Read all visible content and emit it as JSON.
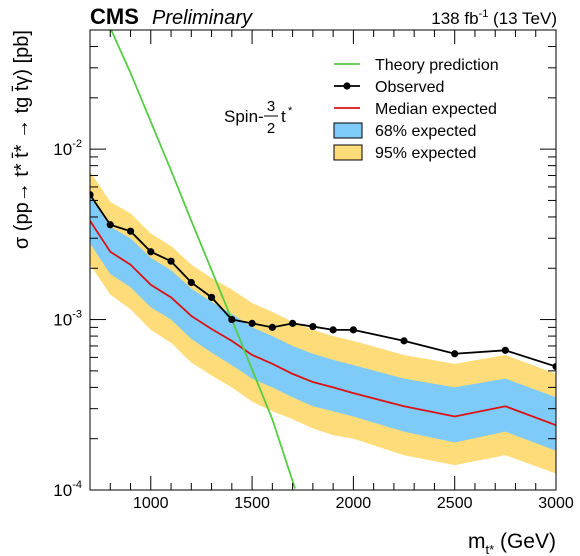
{
  "chart_data": {
    "type": "line",
    "experiment": "CMS",
    "status": "Preliminary",
    "lumi_value": "138 fb",
    "lumi_exponent": "-1",
    "energy": "(13 TeV)",
    "annotation": {
      "prefix": "Spin-",
      "num": "3",
      "den": "2",
      "particle": "t",
      "star": "*"
    },
    "xlabel": {
      "main": "m",
      "sub": "t*",
      "unit": "(GeV)"
    },
    "ylabel": "σ (pp→ t* t̄* → tg t̄γ) [pb]",
    "xlim": [
      700,
      3000
    ],
    "ylim": [
      0.0001,
      0.05
    ],
    "yscale": "log",
    "xticks": [
      1000,
      1500,
      2000,
      2500,
      3000
    ],
    "xtick_labels": [
      "1000",
      "1500",
      "2000",
      "2500",
      "3000"
    ],
    "yticks": [
      {
        "mant": "10",
        "exp": "-4",
        "v": 0.0001
      },
      {
        "mant": "10",
        "exp": "-3",
        "v": 0.001
      },
      {
        "mant": "10",
        "exp": "-2",
        "v": 0.01
      }
    ],
    "grid": false,
    "legend_position": "top-right",
    "x": [
      700,
      800,
      900,
      1000,
      1100,
      1200,
      1300,
      1400,
      1500,
      1600,
      1700,
      1800,
      1900,
      2000,
      2250,
      2500,
      2750,
      3000
    ],
    "series": [
      {
        "name": "Theory prediction",
        "color": "#55cc44",
        "x": [
          805,
          900,
          1000,
          1100,
          1200,
          1300,
          1400,
          1500,
          1600,
          1712
        ],
        "values": [
          0.05,
          0.028,
          0.0145,
          0.0075,
          0.0038,
          0.00195,
          0.001,
          0.00051,
          0.00026,
          0.000102
        ]
      },
      {
        "name": "Observed",
        "color": "#000000",
        "values": [
          0.0054,
          0.0036,
          0.0033,
          0.0025,
          0.0022,
          0.00165,
          0.00135,
          0.001,
          0.00095,
          0.0009,
          0.00095,
          0.00091,
          0.00087,
          0.00087,
          0.00075,
          0.00063,
          0.00066,
          0.00053
        ]
      },
      {
        "name": "Median expected",
        "color": "#dd1111",
        "values": [
          0.0038,
          0.0025,
          0.0021,
          0.0016,
          0.00135,
          0.00105,
          0.00088,
          0.00075,
          0.00062,
          0.00055,
          0.00048,
          0.00043,
          0.0004,
          0.00037,
          0.00031,
          0.00027,
          0.00031,
          0.00024
        ]
      },
      {
        "name": "68% expected",
        "color": "#7ecaf9",
        "lower": [
          0.0028,
          0.00185,
          0.00155,
          0.00118,
          0.001,
          0.00077,
          0.00064,
          0.00054,
          0.00045,
          0.0004,
          0.00035,
          0.00031,
          0.00029,
          0.00027,
          0.00022,
          0.00019,
          0.00022,
          0.00017
        ],
        "upper": [
          0.0053,
          0.0035,
          0.003,
          0.0023,
          0.00195,
          0.00152,
          0.00127,
          0.00108,
          0.0009,
          0.0008,
          0.0007,
          0.00063,
          0.00058,
          0.00054,
          0.00045,
          0.0004,
          0.00045,
          0.00035
        ]
      },
      {
        "name": "95% expected",
        "color": "#fedc79",
        "lower": [
          0.0021,
          0.0014,
          0.00115,
          0.00087,
          0.00073,
          0.00056,
          0.00047,
          0.0004,
          0.00033,
          0.00029,
          0.00026,
          0.00023,
          0.00021,
          0.0002,
          0.00016,
          0.00014,
          0.00016,
          0.000125
        ],
        "upper": [
          0.0074,
          0.0049,
          0.0042,
          0.0032,
          0.0027,
          0.0021,
          0.00175,
          0.0015,
          0.00125,
          0.00111,
          0.00097,
          0.00087,
          0.0008,
          0.00075,
          0.00062,
          0.00055,
          0.00062,
          0.00048
        ]
      }
    ]
  }
}
